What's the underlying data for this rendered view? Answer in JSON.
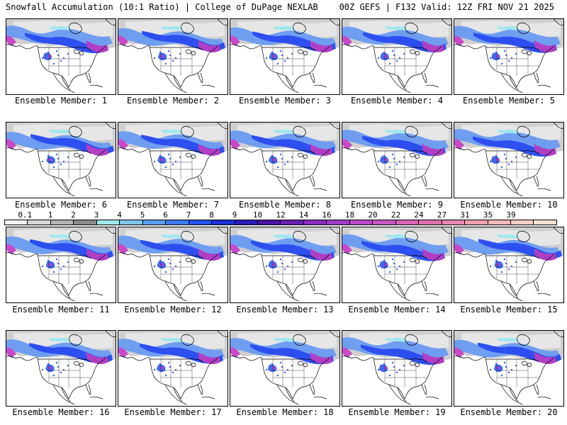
{
  "header": {
    "title_left": "Snowfall Accumulation (10:1 Ratio) | College of DuPage NEXLAB",
    "title_right": "00Z GEFS | F132 Valid: 12Z FRI NOV 21 2025"
  },
  "colorbar": {
    "labels": [
      "0.1",
      "1",
      "2",
      "3",
      "4",
      "5",
      "6",
      "7",
      "8",
      "9",
      "10",
      "12",
      "14",
      "16",
      "18",
      "20",
      "22",
      "24",
      "27",
      "31",
      "35",
      "39"
    ],
    "colors": [
      "#f4f4f4",
      "#d6d6d6",
      "#b4b4b4",
      "#8a8a8a",
      "#9fe8ee",
      "#7ec3ec",
      "#5a9ef0",
      "#3f7af0",
      "#2350f0",
      "#1a30d8",
      "#2a1ab8",
      "#4a12a0",
      "#6a1eb0",
      "#8a2cc0",
      "#a03ac8",
      "#b848c8",
      "#c856c0",
      "#d864b8",
      "#e070b0",
      "#e888b0",
      "#f0a0b0",
      "#f4b8b8",
      "#f6cec4",
      "#f8dfce"
    ]
  },
  "panels": [
    {
      "caption": "Ensemble Member: 1"
    },
    {
      "caption": "Ensemble Member: 2"
    },
    {
      "caption": "Ensemble Member: 3"
    },
    {
      "caption": "Ensemble Member: 4"
    },
    {
      "caption": "Ensemble Member: 5"
    },
    {
      "caption": "Ensemble Member: 6"
    },
    {
      "caption": "Ensemble Member: 7"
    },
    {
      "caption": "Ensemble Member: 8"
    },
    {
      "caption": "Ensemble Member: 9"
    },
    {
      "caption": "Ensemble Member: 10"
    },
    {
      "caption": "Ensemble Member: 11"
    },
    {
      "caption": "Ensemble Member: 12"
    },
    {
      "caption": "Ensemble Member: 13"
    },
    {
      "caption": "Ensemble Member: 14"
    },
    {
      "caption": "Ensemble Member: 15"
    },
    {
      "caption": "Ensemble Member: 16"
    },
    {
      "caption": "Ensemble Member: 17"
    },
    {
      "caption": "Ensemble Member: 18"
    },
    {
      "caption": "Ensemble Member: 19"
    },
    {
      "caption": "Ensemble Member: 20"
    }
  ]
}
